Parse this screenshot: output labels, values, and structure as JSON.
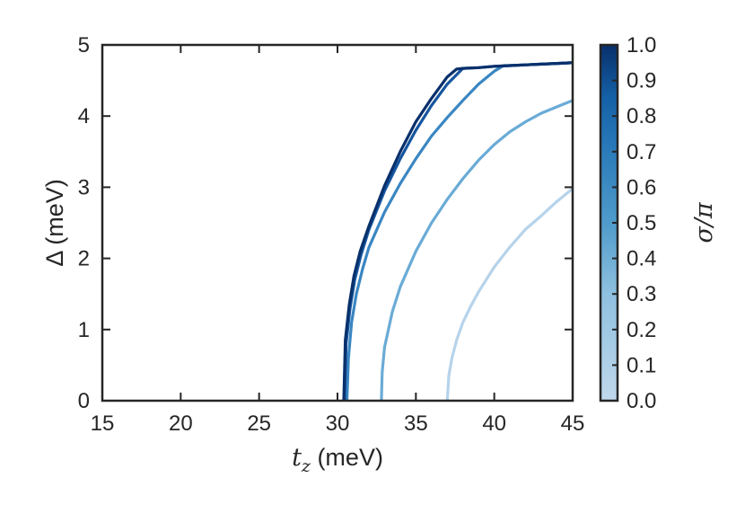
{
  "chart_data": {
    "type": "line",
    "xlabel_symbol": "t",
    "xlabel_subscript": "z",
    "xlabel_unit": " (meV)",
    "ylabel": "Δ (meV)",
    "xlim": [
      15,
      45
    ],
    "ylim": [
      0,
      5
    ],
    "xticks": [
      15,
      20,
      25,
      30,
      35,
      40,
      45
    ],
    "yticks": [
      0,
      1,
      2,
      3,
      4,
      5
    ],
    "grid": false,
    "colorbar": {
      "label": "σ/π",
      "range": [
        0.0,
        1.0
      ],
      "ticks": [
        "0.0",
        "0.1",
        "0.2",
        "0.3",
        "0.4",
        "0.5",
        "0.6",
        "0.7",
        "0.8",
        "0.9",
        "1.0"
      ],
      "color_low": "#c0d8ec",
      "color_high": "#08306b"
    },
    "series": [
      {
        "sigma": 0.2,
        "color": "#b6d3ea",
        "x": [
          37.0,
          37.1,
          37.3,
          37.6,
          38.0,
          38.5,
          39.0,
          40.0,
          41.0,
          42.0,
          43.0,
          44.0,
          45.0
        ],
        "y": [
          0.0,
          0.35,
          0.6,
          0.85,
          1.1,
          1.33,
          1.53,
          1.88,
          2.16,
          2.41,
          2.6,
          2.8,
          2.98
        ]
      },
      {
        "sigma": 0.4,
        "color": "#6aabd6",
        "x": [
          32.8,
          32.85,
          33.0,
          33.5,
          34.0,
          35.0,
          36.0,
          37.0,
          38.0,
          39.0,
          40.0,
          41.0,
          42.0,
          43.0,
          44.0,
          45.0
        ],
        "y": [
          0.0,
          0.4,
          0.75,
          1.25,
          1.6,
          2.1,
          2.5,
          2.83,
          3.12,
          3.38,
          3.6,
          3.78,
          3.92,
          4.04,
          4.13,
          4.22
        ]
      },
      {
        "sigma": 0.6,
        "color": "#3a86c2",
        "x": [
          30.6,
          30.7,
          30.9,
          31.2,
          31.6,
          32.0,
          33.0,
          34.0,
          35.0,
          36.0,
          37.0,
          38.0,
          39.0,
          40.0,
          40.6,
          41.0,
          42.0,
          43.0,
          44.0,
          45.0
        ],
        "y": [
          0.0,
          0.6,
          1.1,
          1.5,
          1.85,
          2.15,
          2.65,
          3.05,
          3.4,
          3.72,
          3.98,
          4.22,
          4.45,
          4.63,
          4.71,
          4.71,
          4.72,
          4.73,
          4.74,
          4.75
        ]
      },
      {
        "sigma": 0.8,
        "color": "#15559e",
        "x": [
          30.45,
          30.55,
          30.8,
          31.1,
          31.5,
          32.0,
          33.0,
          34.0,
          35.0,
          36.0,
          37.0,
          38.0,
          39.0,
          40.0,
          41.0,
          42.0,
          43.0,
          44.0,
          45.0
        ],
        "y": [
          0.0,
          0.8,
          1.3,
          1.7,
          2.05,
          2.4,
          2.95,
          3.4,
          3.8,
          4.15,
          4.45,
          4.67,
          4.68,
          4.7,
          4.71,
          4.72,
          4.73,
          4.74,
          4.75
        ]
      },
      {
        "sigma": 1.0,
        "color": "#08306b",
        "x": [
          30.4,
          30.5,
          30.75,
          31.05,
          31.45,
          32.0,
          33.0,
          34.0,
          35.0,
          36.0,
          37.0,
          37.6,
          38.0,
          39.0,
          40.0,
          41.0,
          42.0,
          43.0,
          44.0,
          45.0
        ],
        "y": [
          0.0,
          0.85,
          1.35,
          1.75,
          2.1,
          2.45,
          3.02,
          3.5,
          3.92,
          4.25,
          4.55,
          4.66,
          4.67,
          4.68,
          4.7,
          4.71,
          4.72,
          4.73,
          4.74,
          4.75
        ]
      }
    ]
  }
}
